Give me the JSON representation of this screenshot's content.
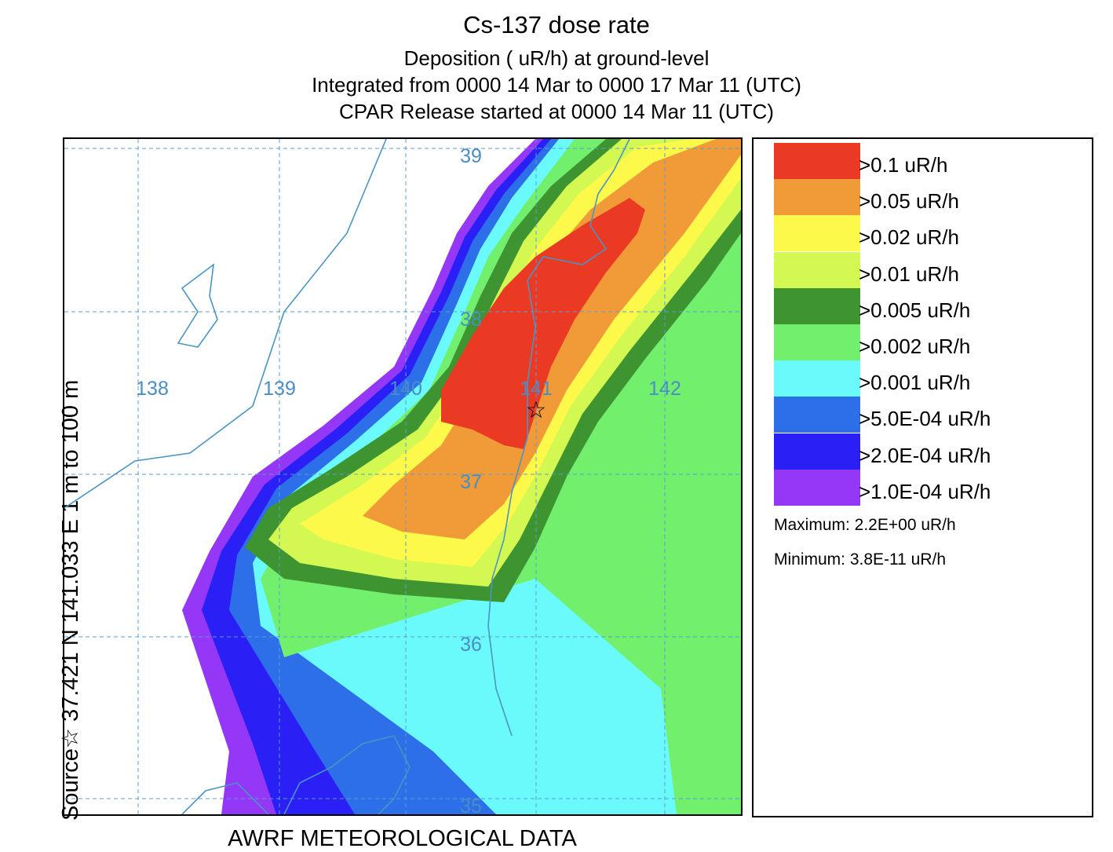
{
  "title": {
    "line1": "Cs-137 dose rate",
    "line2": "Deposition  ( uR/h) at ground-level",
    "line3": "Integrated from 0000 14 Mar to 0000 17 Mar 11 (UTC)",
    "line4": "CPAR Release started at 0000 14 Mar 11 (UTC)"
  },
  "side_label": "Source☆ 37.421  N 141.033  E      1 m to  100 m",
  "footer": "AWRF METEOROLOGICAL DATA",
  "grid": {
    "longitudes": [
      "138",
      "139",
      "140",
      "141",
      "142"
    ],
    "latitudes": [
      "39",
      "38",
      "37",
      "36",
      "35"
    ]
  },
  "source_marker": "☆",
  "legend": {
    "items": [
      {
        "label": ">0.1  uR/h",
        "color": "#ea3a24"
      },
      {
        "label": ">0.05  uR/h",
        "color": "#f09b37"
      },
      {
        "label": ">0.02  uR/h",
        "color": "#fdf94b"
      },
      {
        "label": ">0.01  uR/h",
        "color": "#d4f852"
      },
      {
        "label": ">0.005  uR/h",
        "color": "#3e9431"
      },
      {
        "label": ">0.002  uR/h",
        "color": "#72f06d"
      },
      {
        "label": ">0.001  uR/h",
        "color": "#6bfafb"
      },
      {
        "label": ">5.0E-04  uR/h",
        "color": "#2c6fe9"
      },
      {
        "label": ">2.0E-04  uR/h",
        "color": "#2a1ff5"
      },
      {
        "label": ">1.0E-04  uR/h",
        "color": "#9437f6"
      }
    ],
    "maximum": "Maximum: 2.2E+00  uR/h",
    "minimum": "Minimum: 3.8E-11  uR/h"
  },
  "colors": {
    "grid_line": "#5b9bd5",
    "grid_label": "#4a8dc6",
    "coast_line": "#4a94c4"
  }
}
